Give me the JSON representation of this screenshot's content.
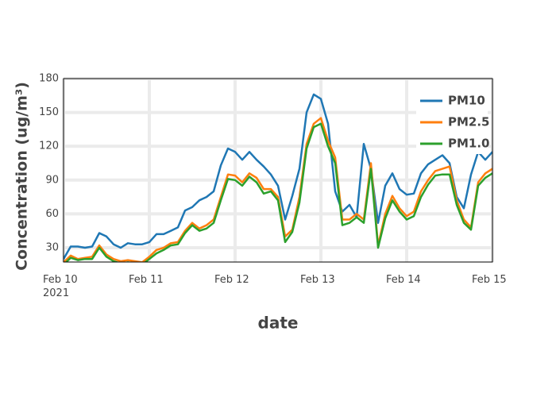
{
  "chart_data": {
    "type": "line",
    "x_label": "date",
    "y_label": "Concentration (ug/m³)",
    "x": [
      "2021-02-10 00:00",
      "2021-02-10 02:00",
      "2021-02-10 04:00",
      "2021-02-10 06:00",
      "2021-02-10 08:00",
      "2021-02-10 10:00",
      "2021-02-10 12:00",
      "2021-02-10 14:00",
      "2021-02-10 16:00",
      "2021-02-10 18:00",
      "2021-02-10 20:00",
      "2021-02-10 22:00",
      "2021-02-11 00:00",
      "2021-02-11 02:00",
      "2021-02-11 04:00",
      "2021-02-11 06:00",
      "2021-02-11 08:00",
      "2021-02-11 10:00",
      "2021-02-11 12:00",
      "2021-02-11 14:00",
      "2021-02-11 16:00",
      "2021-02-11 18:00",
      "2021-02-11 20:00",
      "2021-02-11 22:00",
      "2021-02-12 00:00",
      "2021-02-12 02:00",
      "2021-02-12 04:00",
      "2021-02-12 06:00",
      "2021-02-12 08:00",
      "2021-02-12 10:00",
      "2021-02-12 12:00",
      "2021-02-12 14:00",
      "2021-02-12 16:00",
      "2021-02-12 18:00",
      "2021-02-12 20:00",
      "2021-02-12 22:00",
      "2021-02-13 00:00",
      "2021-02-13 02:00",
      "2021-02-13 04:00",
      "2021-02-13 06:00",
      "2021-02-13 08:00",
      "2021-02-13 10:00",
      "2021-02-13 12:00",
      "2021-02-13 14:00",
      "2021-02-13 16:00",
      "2021-02-13 18:00",
      "2021-02-13 20:00",
      "2021-02-13 22:00",
      "2021-02-14 00:00",
      "2021-02-14 02:00",
      "2021-02-14 04:00",
      "2021-02-14 06:00",
      "2021-02-14 08:00",
      "2021-02-14 10:00",
      "2021-02-14 12:00",
      "2021-02-14 14:00",
      "2021-02-14 16:00",
      "2021-02-14 18:00",
      "2021-02-14 20:00",
      "2021-02-14 22:00",
      "2021-02-15 00:00"
    ],
    "series": [
      {
        "name": "PM10",
        "color": "#1f77b4",
        "values": [
          20,
          31,
          31,
          30,
          31,
          43,
          40,
          33,
          30,
          34,
          33,
          33,
          35,
          42,
          42,
          45,
          48,
          63,
          66,
          72,
          75,
          80,
          103,
          118,
          115,
          108,
          115,
          108,
          102,
          95,
          85,
          55,
          76,
          100,
          150,
          166,
          162,
          140,
          80,
          62,
          68,
          57,
          122,
          100,
          52,
          85,
          96,
          82,
          77,
          78,
          96,
          104,
          108,
          112,
          105,
          75,
          65,
          95,
          115,
          108,
          115
        ]
      },
      {
        "name": "PM2.5",
        "color": "#ff7f0e",
        "values": [
          17,
          23,
          20,
          21,
          22,
          32,
          24,
          20,
          18,
          19,
          18,
          17,
          22,
          28,
          30,
          34,
          35,
          45,
          52,
          47,
          50,
          55,
          75,
          95,
          94,
          88,
          96,
          92,
          82,
          82,
          75,
          40,
          46,
          75,
          122,
          140,
          145,
          125,
          110,
          55,
          55,
          60,
          55,
          105,
          32,
          60,
          76,
          65,
          58,
          62,
          80,
          90,
          98,
          100,
          102,
          72,
          55,
          48,
          88,
          96,
          100
        ]
      },
      {
        "name": "PM1.0",
        "color": "#2ca02c",
        "values": [
          15,
          21,
          19,
          20,
          20,
          30,
          22,
          18,
          16,
          17,
          16,
          15,
          20,
          25,
          28,
          32,
          33,
          43,
          50,
          45,
          47,
          52,
          72,
          91,
          90,
          85,
          93,
          88,
          78,
          80,
          72,
          35,
          44,
          70,
          118,
          137,
          140,
          120,
          105,
          50,
          52,
          57,
          52,
          100,
          30,
          56,
          72,
          62,
          55,
          58,
          75,
          86,
          94,
          95,
          95,
          68,
          52,
          46,
          85,
          92,
          96
        ]
      }
    ],
    "xlim": [
      "2021-02-10 00:00",
      "2021-02-15 00:00"
    ],
    "xticks": [
      {
        "value": "2021-02-10 00:00",
        "label": "Feb 10\n2021"
      },
      {
        "value": "2021-02-11 00:00",
        "label": "Feb 11"
      },
      {
        "value": "2021-02-12 00:00",
        "label": "Feb 12"
      },
      {
        "value": "2021-02-13 00:00",
        "label": "Feb 13"
      },
      {
        "value": "2021-02-14 00:00",
        "label": "Feb 14"
      },
      {
        "value": "2021-02-15 00:00",
        "label": "Feb 15"
      }
    ],
    "ylim": [
      17.3,
      180
    ],
    "yticks": [
      30,
      60,
      90,
      120,
      150,
      180
    ],
    "grid": true,
    "legend": "top-right"
  }
}
